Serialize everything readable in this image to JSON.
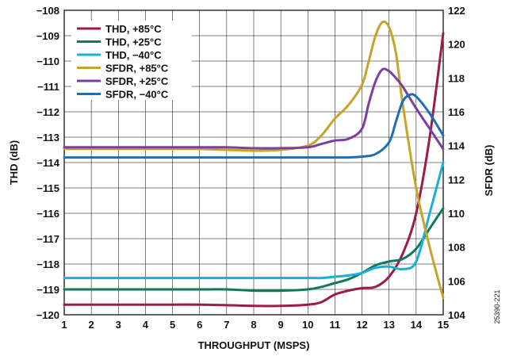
{
  "chart_data": {
    "type": "line",
    "xlabel": "THROUGHPUT (MSPS)",
    "ylabel_left": "THD (dB)",
    "ylabel_right": "SFDR (dB)",
    "xlim": [
      1,
      15
    ],
    "ylim_left": [
      -120,
      -108
    ],
    "ylim_right": [
      104,
      122
    ],
    "x_ticks": [
      "1",
      "2",
      "3",
      "4",
      "5",
      "6",
      "7",
      "8",
      "9",
      "10",
      "11",
      "12",
      "13",
      "14",
      "15"
    ],
    "y_ticks_left": [
      "−108",
      "−109",
      "−110",
      "−111",
      "−112",
      "−113",
      "−114",
      "−115",
      "−116",
      "−117",
      "−118",
      "−119",
      "−120"
    ],
    "y_ticks_right": [
      "122",
      "120",
      "118",
      "116",
      "114",
      "112",
      "110",
      "108",
      "106",
      "104"
    ],
    "grid": true,
    "legend_position": "top-left",
    "figure_id": "25390-221",
    "series": [
      {
        "name": "THD, +85°C",
        "axis": "left",
        "color": "#9b1b4a",
        "x": [
          1,
          2,
          3,
          4,
          5,
          6,
          7,
          8,
          9,
          10,
          10.5,
          11,
          11.5,
          12,
          12.5,
          13,
          13.5,
          14,
          14.5,
          15
        ],
        "y": [
          -119.6,
          -119.6,
          -119.6,
          -119.6,
          -119.6,
          -119.6,
          -119.62,
          -119.65,
          -119.65,
          -119.6,
          -119.5,
          -119.2,
          -119.05,
          -118.95,
          -118.9,
          -118.5,
          -117.6,
          -116.0,
          -113.0,
          -108.9
        ]
      },
      {
        "name": "THD, +25°C",
        "axis": "left",
        "color": "#0d7a5f",
        "x": [
          1,
          2,
          3,
          4,
          5,
          6,
          7,
          8,
          9,
          10,
          10.5,
          11,
          11.5,
          12,
          12.5,
          13,
          13.5,
          14,
          14.5,
          15
        ],
        "y": [
          -119.0,
          -119.0,
          -119.0,
          -119.0,
          -119.0,
          -119.0,
          -119.0,
          -119.05,
          -119.05,
          -119.0,
          -118.9,
          -118.75,
          -118.6,
          -118.35,
          -118.05,
          -117.9,
          -117.8,
          -117.4,
          -116.6,
          -115.8
        ]
      },
      {
        "name": "THD, −40°C",
        "axis": "left",
        "color": "#1ab0d6",
        "x": [
          1,
          2,
          3,
          4,
          5,
          6,
          7,
          8,
          9,
          10,
          10.5,
          11,
          11.5,
          12,
          12.5,
          13,
          13.5,
          14,
          14.5,
          15
        ],
        "y": [
          -118.55,
          -118.55,
          -118.55,
          -118.55,
          -118.55,
          -118.55,
          -118.55,
          -118.55,
          -118.55,
          -118.55,
          -118.55,
          -118.5,
          -118.45,
          -118.35,
          -118.15,
          -118.1,
          -118.2,
          -117.9,
          -116.0,
          -114.0
        ]
      },
      {
        "name": "SFDR, +85°C",
        "axis": "right",
        "color": "#c7a32b",
        "x": [
          1,
          2,
          3,
          4,
          5,
          6,
          7,
          8,
          9,
          10,
          10.5,
          11,
          11.5,
          12,
          12.25,
          12.5,
          12.75,
          13,
          13.25,
          13.5,
          14,
          14.5,
          15
        ],
        "y": [
          113.8,
          113.8,
          113.8,
          113.8,
          113.8,
          113.8,
          113.75,
          113.7,
          113.75,
          114.0,
          114.6,
          115.6,
          116.4,
          117.6,
          119.0,
          120.5,
          121.3,
          121.0,
          119.5,
          116.5,
          111.5,
          108.0,
          105.0
        ]
      },
      {
        "name": "SFDR, +25°C",
        "axis": "right",
        "color": "#7b3fa3",
        "x": [
          1,
          2,
          3,
          4,
          5,
          6,
          7,
          8,
          9,
          10,
          10.5,
          11,
          11.5,
          12,
          12.25,
          12.5,
          12.75,
          13,
          13.25,
          13.5,
          14,
          14.5,
          15
        ],
        "y": [
          113.9,
          113.9,
          113.9,
          113.9,
          113.9,
          113.9,
          113.9,
          113.85,
          113.85,
          113.9,
          114.1,
          114.3,
          114.4,
          115.0,
          116.5,
          117.8,
          118.5,
          118.4,
          118.0,
          117.5,
          116.2,
          115.0,
          113.8
        ]
      },
      {
        "name": "SFDR, −40°C",
        "axis": "right",
        "color": "#1b6fb5",
        "x": [
          1,
          2,
          3,
          4,
          5,
          6,
          7,
          8,
          9,
          10,
          10.5,
          11,
          11.5,
          12,
          12.5,
          13,
          13.25,
          13.5,
          13.75,
          14,
          14.5,
          15
        ],
        "y": [
          113.3,
          113.3,
          113.3,
          113.3,
          113.3,
          113.3,
          113.3,
          113.3,
          113.3,
          113.3,
          113.3,
          113.3,
          113.3,
          113.35,
          113.5,
          114.2,
          115.4,
          116.6,
          117.0,
          116.9,
          115.9,
          114.6
        ]
      }
    ]
  }
}
